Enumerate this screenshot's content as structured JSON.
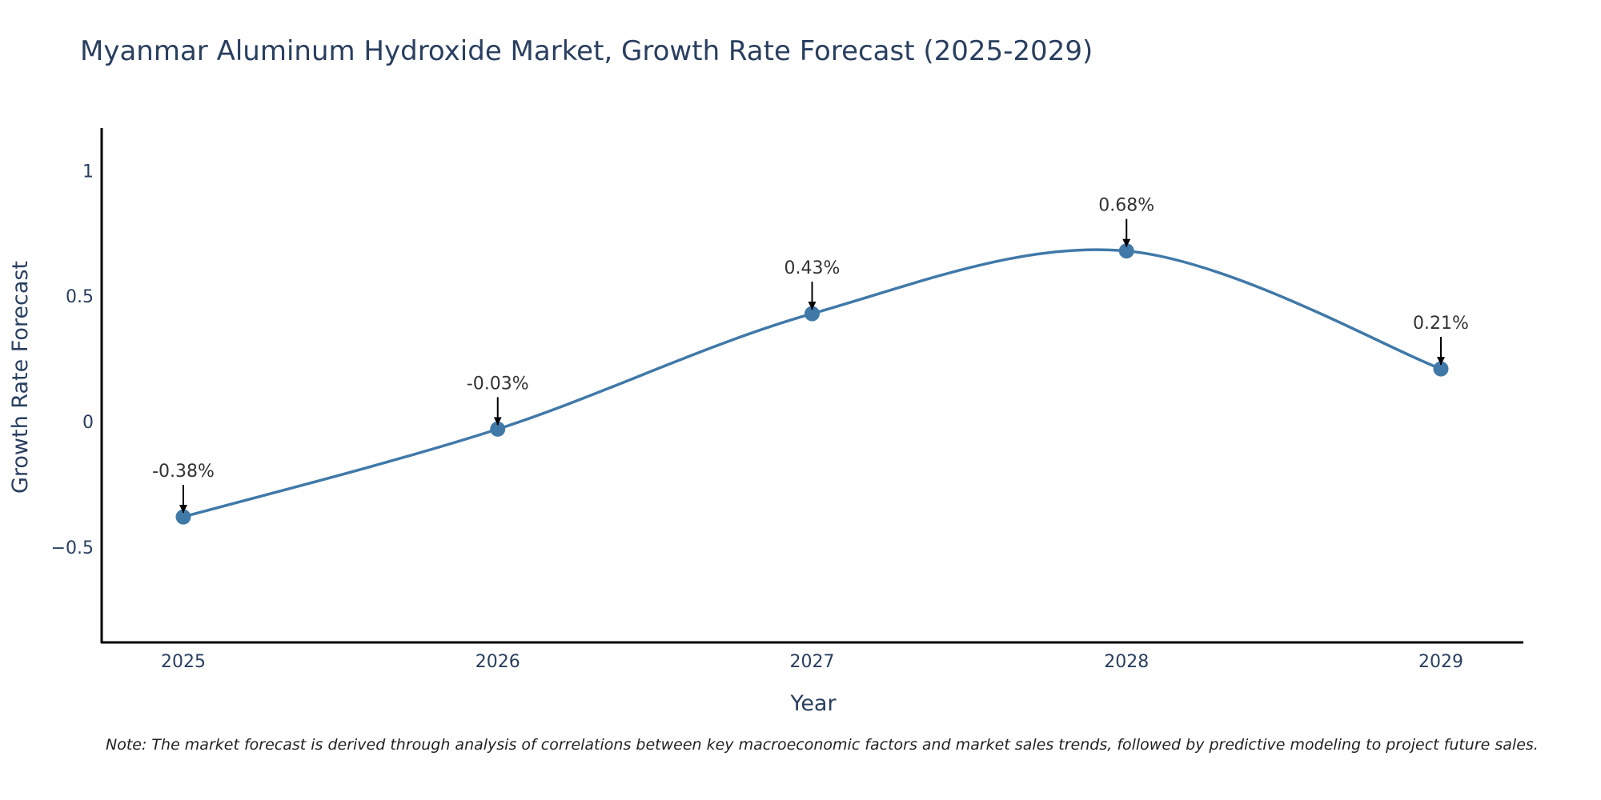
{
  "chart_data": {
    "type": "line",
    "title": "Myanmar Aluminum Hydroxide Market, Growth Rate Forecast (2025-2029)",
    "xlabel": "Year",
    "ylabel": "Growth Rate Forecast",
    "categories": [
      "2025",
      "2026",
      "2027",
      "2028",
      "2029"
    ],
    "series": [
      {
        "name": "Growth Rate Forecast",
        "values": [
          -0.38,
          -0.03,
          0.43,
          0.68,
          0.21
        ],
        "labels": [
          "-0.38%",
          "-0.03%",
          "0.43%",
          "0.68%",
          "0.21%"
        ],
        "color": "#4079a8"
      }
    ],
    "ylim": [
      -0.88,
      1.17
    ],
    "yticks": [
      -0.5,
      0,
      0.5,
      1
    ],
    "ytick_labels": [
      "−0.5",
      "0",
      "0.5",
      "1"
    ],
    "grid": false,
    "line_shape": "spline",
    "note": "Note: The market forecast is derived through analysis of correlations between key macroeconomic factors and market sales trends, followed by predictive modeling to project future sales."
  },
  "colors": {
    "title": "#2a3f5f",
    "axis_text": "#2a3f5f",
    "axis_line": "#000000",
    "annotation": "#000000"
  }
}
